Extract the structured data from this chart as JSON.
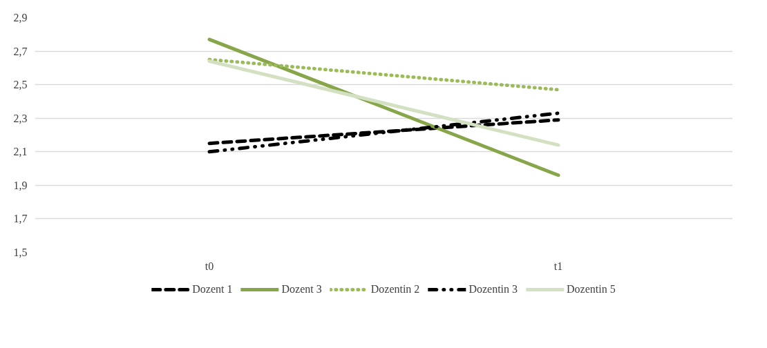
{
  "chart_data": {
    "type": "line",
    "categories": [
      "t0",
      "t1"
    ],
    "ylim": [
      1.5,
      2.9
    ],
    "yticks": [
      {
        "value": 1.5,
        "label": "1,5"
      },
      {
        "value": 1.7,
        "label": "1,7"
      },
      {
        "value": 1.9,
        "label": "1,9"
      },
      {
        "value": 2.1,
        "label": "2,1"
      },
      {
        "value": 2.3,
        "label": "2,3"
      },
      {
        "value": 2.5,
        "label": "2,5"
      },
      {
        "value": 2.7,
        "label": "2,7"
      },
      {
        "value": 2.9,
        "label": "2,9"
      }
    ],
    "grid": "y",
    "legend": "bottom",
    "marker": "none",
    "series": [
      {
        "name": "Dozent 1",
        "color": "#000000",
        "line_style": "dashed",
        "values": [
          2.15,
          2.29
        ]
      },
      {
        "name": "Dozent 3",
        "color": "#87a64a",
        "line_style": "solid",
        "values": [
          2.77,
          1.96
        ]
      },
      {
        "name": "Dozentin 2",
        "color": "#9bbb59",
        "line_style": "dotted",
        "values": [
          2.65,
          2.47
        ]
      },
      {
        "name": "Dozentin 3",
        "color": "#000000",
        "line_style": "dashdotdot",
        "values": [
          2.1,
          2.33
        ]
      },
      {
        "name": "Dozentin 5",
        "color": "#d3e0c1",
        "line_style": "solid",
        "values": [
          2.64,
          2.14
        ]
      }
    ]
  }
}
